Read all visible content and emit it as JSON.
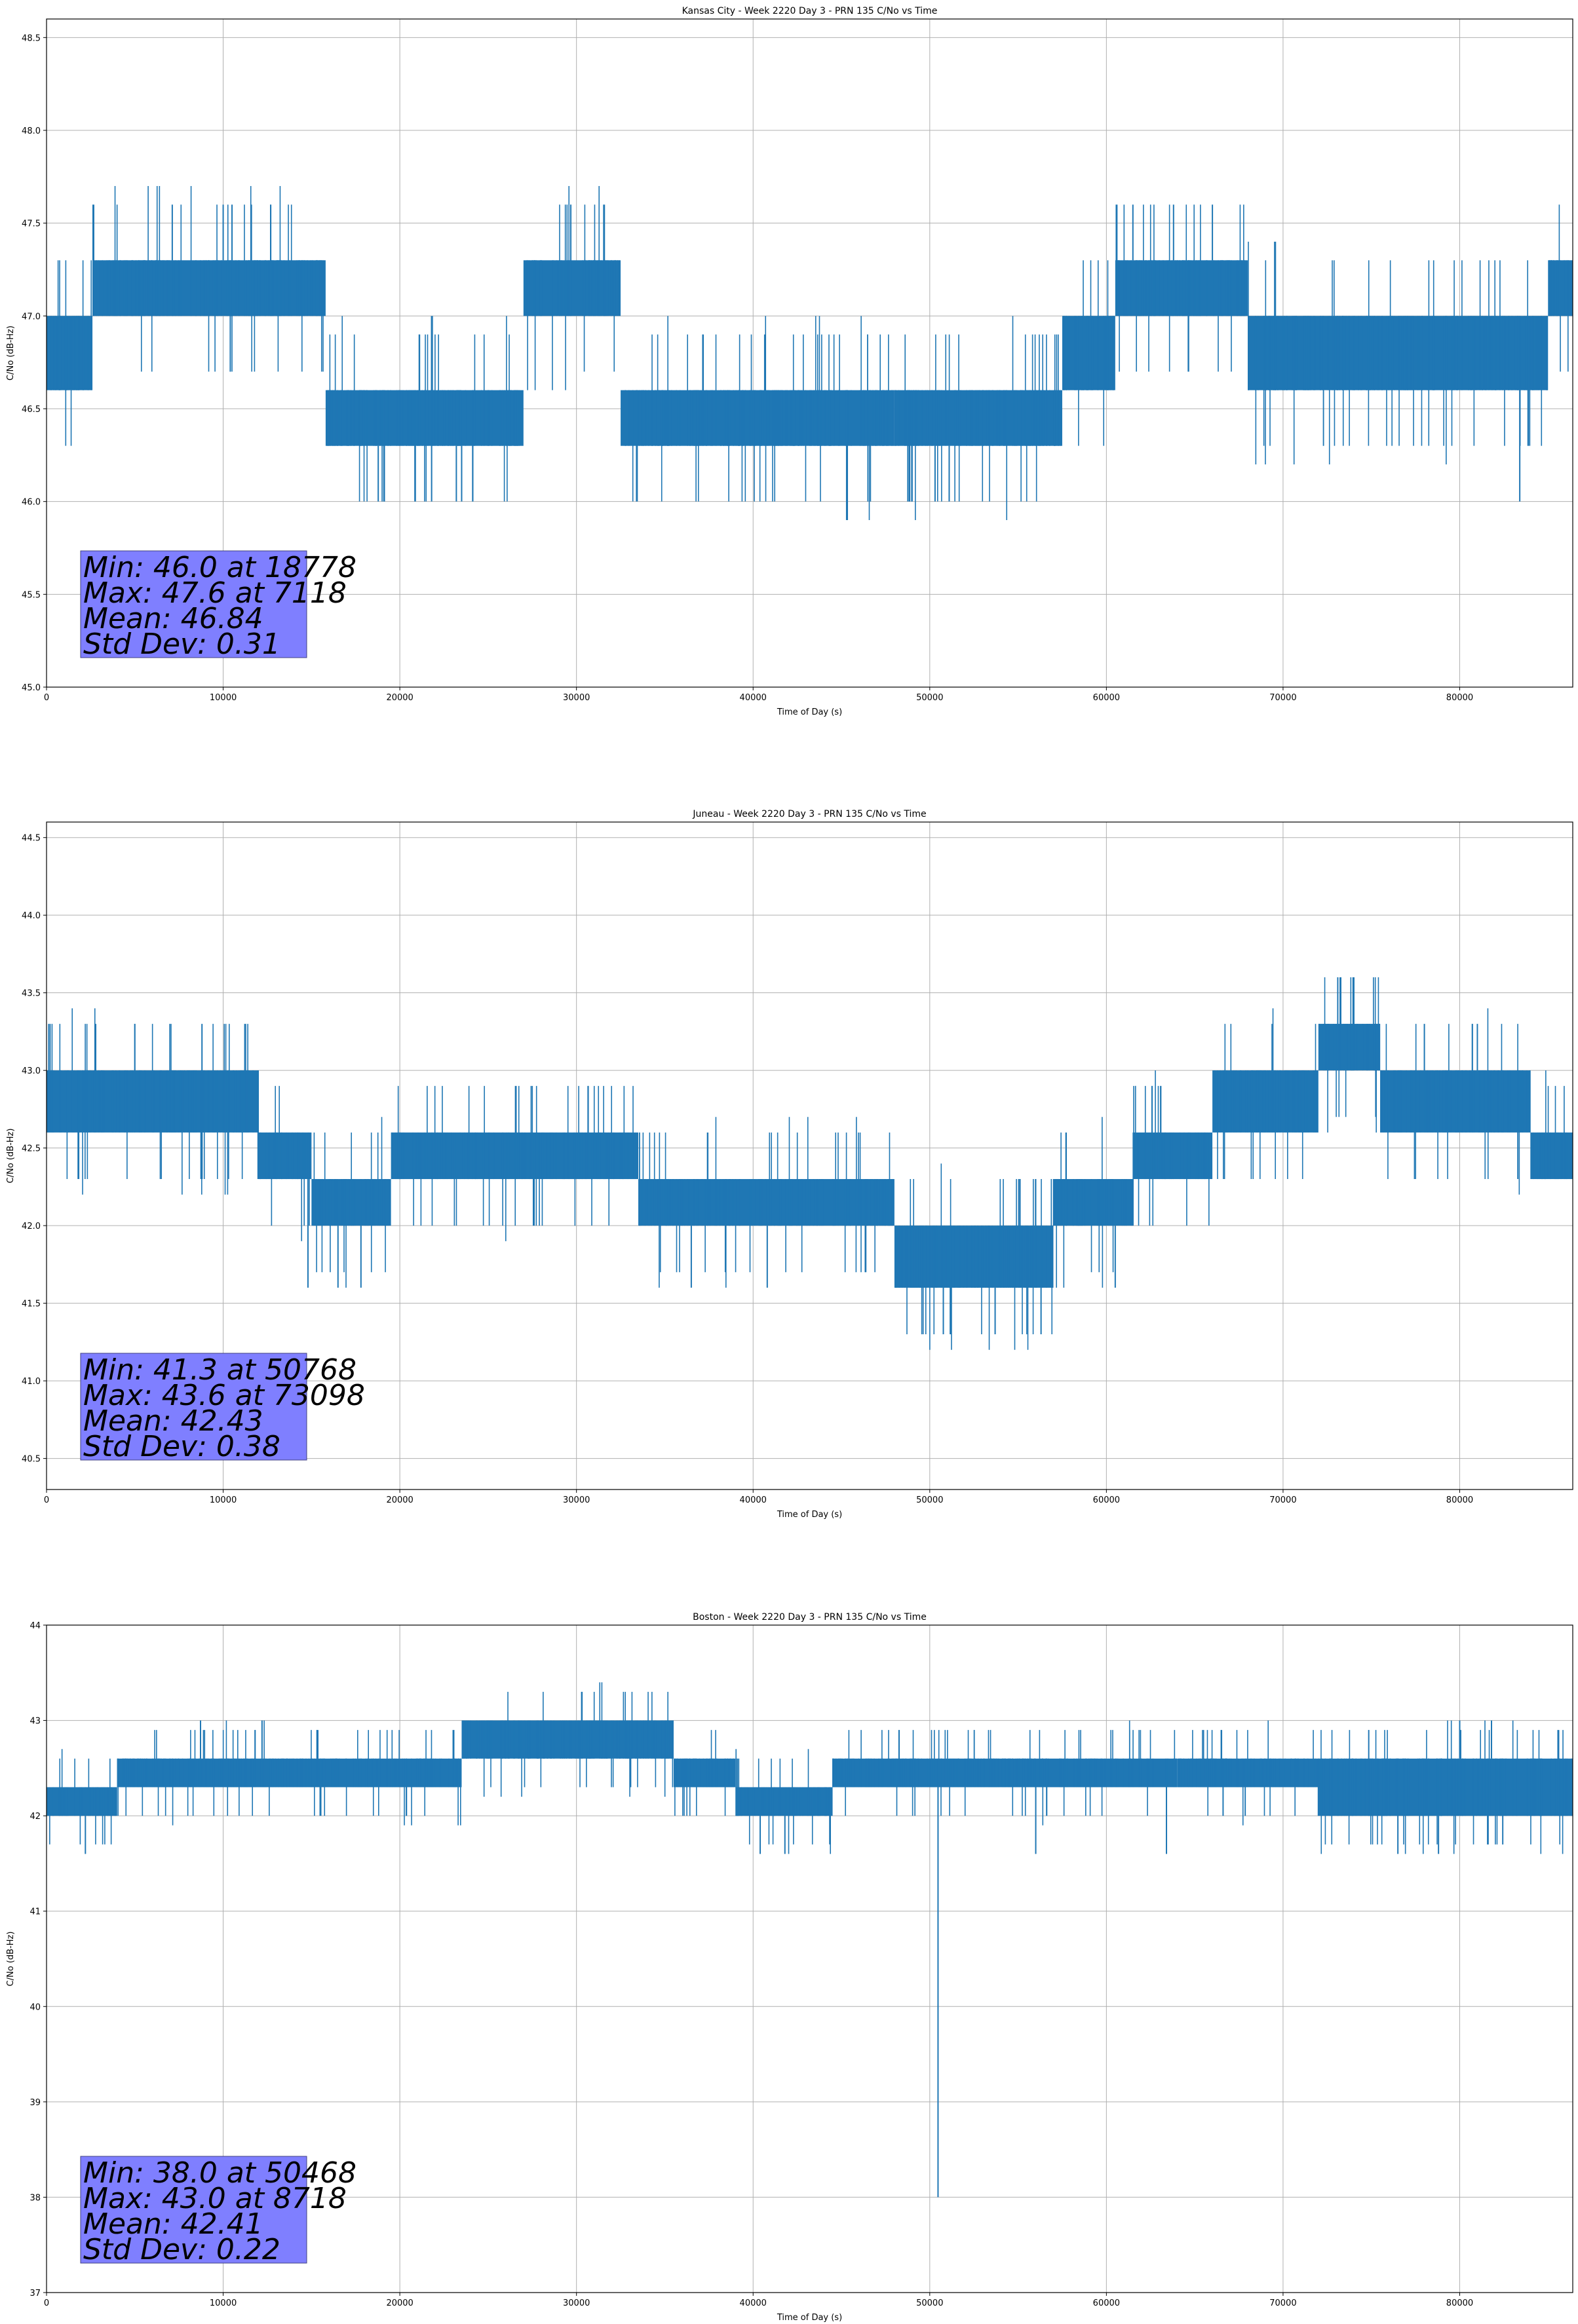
{
  "chart_data": [
    {
      "type": "line",
      "title": "Kansas City - Week 2220 Day 3 - PRN 135 C/No vs Time",
      "xlabel": "Time of Day (s)",
      "ylabel": "C/No (dB-Hz)",
      "xlim": [
        0,
        86400
      ],
      "ylim": [
        45.0,
        48.6
      ],
      "xticks": [
        0,
        10000,
        20000,
        30000,
        40000,
        50000,
        60000,
        70000,
        80000
      ],
      "yticks": [
        "45.0",
        "45.5",
        "46.0",
        "46.5",
        "47.0",
        "47.5",
        "48.0",
        "48.5"
      ],
      "grid": true,
      "color": "#1f77b4",
      "stats": [
        "Min: 46.0 at 18778",
        "Max: 47.6 at 7118",
        "Mean: 46.84",
        "Std Dev: 0.31"
      ],
      "bands": [
        {
          "x": [
            0,
            2600
          ],
          "y": [
            46.6,
            47.0
          ]
        },
        {
          "x": [
            2600,
            15800
          ],
          "y": [
            47.0,
            47.3
          ]
        },
        {
          "x": [
            15800,
            27000
          ],
          "y": [
            46.3,
            46.6
          ]
        },
        {
          "x": [
            27000,
            32500
          ],
          "y": [
            47.0,
            47.3
          ]
        },
        {
          "x": [
            32500,
            48000
          ],
          "y": [
            46.3,
            46.6
          ]
        },
        {
          "x": [
            48000,
            57500
          ],
          "y": [
            46.3,
            46.6
          ]
        },
        {
          "x": [
            57500,
            60500
          ],
          "y": [
            46.6,
            47.0
          ]
        },
        {
          "x": [
            60500,
            68000
          ],
          "y": [
            47.0,
            47.3
          ]
        },
        {
          "x": [
            68000,
            85000
          ],
          "y": [
            46.6,
            47.0
          ]
        },
        {
          "x": [
            85000,
            86400
          ],
          "y": [
            47.0,
            47.3
          ]
        }
      ],
      "spikes": [
        [
          7118,
          47.6
        ],
        [
          10000,
          47.6
        ],
        [
          10500,
          47.6
        ],
        [
          18778,
          46.0
        ],
        [
          21800,
          46.0
        ],
        [
          23200,
          46.0
        ],
        [
          23500,
          46.0
        ],
        [
          49000,
          46.0
        ],
        [
          50300,
          46.0
        ],
        [
          51100,
          46.0
        ],
        [
          61500,
          47.6
        ],
        [
          63800,
          47.6
        ],
        [
          66000,
          47.6
        ],
        [
          83400,
          46.0
        ]
      ]
    },
    {
      "type": "line",
      "title": "Juneau - Week 2220 Day 3 - PRN 135 C/No vs Time",
      "xlabel": "Time of Day (s)",
      "ylabel": "C/No (dB-Hz)",
      "xlim": [
        0,
        86400
      ],
      "ylim": [
        40.3,
        44.6
      ],
      "xticks": [
        0,
        10000,
        20000,
        30000,
        40000,
        50000,
        60000,
        70000,
        80000
      ],
      "yticks": [
        "40.5",
        "41.0",
        "41.5",
        "42.0",
        "42.5",
        "43.0",
        "43.5",
        "44.0",
        "44.5"
      ],
      "grid": true,
      "color": "#1f77b4",
      "stats": [
        "Min: 41.3 at 50768",
        "Max: 43.6 at 73098",
        "Mean: 42.43",
        "Std Dev: 0.38"
      ],
      "bands": [
        {
          "x": [
            0,
            12000
          ],
          "y": [
            42.6,
            43.0
          ]
        },
        {
          "x": [
            12000,
            15000
          ],
          "y": [
            42.3,
            42.6
          ]
        },
        {
          "x": [
            15000,
            19500
          ],
          "y": [
            42.0,
            42.3
          ]
        },
        {
          "x": [
            19500,
            33500
          ],
          "y": [
            42.3,
            42.6
          ]
        },
        {
          "x": [
            33500,
            48000
          ],
          "y": [
            42.0,
            42.3
          ]
        },
        {
          "x": [
            48000,
            57000
          ],
          "y": [
            41.6,
            42.0
          ]
        },
        {
          "x": [
            57000,
            61500
          ],
          "y": [
            42.0,
            42.3
          ]
        },
        {
          "x": [
            61500,
            66000
          ],
          "y": [
            42.3,
            42.6
          ]
        },
        {
          "x": [
            66000,
            72000
          ],
          "y": [
            42.6,
            43.0
          ]
        },
        {
          "x": [
            72000,
            75500
          ],
          "y": [
            43.0,
            43.3
          ]
        },
        {
          "x": [
            75500,
            84000
          ],
          "y": [
            42.6,
            43.0
          ]
        },
        {
          "x": [
            84000,
            86400
          ],
          "y": [
            42.3,
            42.6
          ]
        }
      ],
      "spikes": [
        [
          200,
          43.3
        ],
        [
          5000,
          43.3
        ],
        [
          8800,
          43.3
        ],
        [
          14800,
          41.6
        ],
        [
          16500,
          41.6
        ],
        [
          17800,
          41.6
        ],
        [
          36500,
          41.6
        ],
        [
          40800,
          41.6
        ],
        [
          50768,
          41.3
        ],
        [
          51200,
          41.3
        ],
        [
          53700,
          41.3
        ],
        [
          56300,
          41.3
        ],
        [
          60500,
          41.6
        ],
        [
          73098,
          43.6
        ],
        [
          78000,
          43.3
        ],
        [
          81000,
          43.3
        ]
      ]
    },
    {
      "type": "line",
      "title": "Boston - Week 2220 Day 3 - PRN 135 C/No vs Time",
      "xlabel": "Time of Day (s)",
      "ylabel": "C/No (dB-Hz)",
      "xlim": [
        0,
        86400
      ],
      "ylim": [
        37,
        44
      ],
      "xticks": [
        0,
        10000,
        20000,
        30000,
        40000,
        50000,
        60000,
        70000,
        80000
      ],
      "yticks": [
        "37",
        "38",
        "39",
        "40",
        "41",
        "42",
        "43",
        "44"
      ],
      "grid": true,
      "color": "#1f77b4",
      "stats": [
        "Min: 38.0 at 50468",
        "Max: 43.0 at 8718",
        "Mean: 42.41",
        "Std Dev: 0.22"
      ],
      "bands": [
        {
          "x": [
            0,
            4000
          ],
          "y": [
            42.0,
            42.3
          ]
        },
        {
          "x": [
            4000,
            23500
          ],
          "y": [
            42.3,
            42.6
          ]
        },
        {
          "x": [
            23500,
            35500
          ],
          "y": [
            42.6,
            43.0
          ]
        },
        {
          "x": [
            35500,
            39000
          ],
          "y": [
            42.3,
            42.6
          ]
        },
        {
          "x": [
            39000,
            44500
          ],
          "y": [
            42.0,
            42.3
          ]
        },
        {
          "x": [
            44500,
            64000
          ],
          "y": [
            42.3,
            42.6
          ]
        },
        {
          "x": [
            64000,
            72000
          ],
          "y": [
            42.3,
            42.6
          ]
        },
        {
          "x": [
            72000,
            86400
          ],
          "y": [
            42.0,
            42.6
          ]
        }
      ],
      "spikes": [
        [
          2200,
          41.6
        ],
        [
          8718,
          43.0
        ],
        [
          12200,
          43.0
        ],
        [
          40400,
          41.6
        ],
        [
          41800,
          41.6
        ],
        [
          50468,
          38.0
        ],
        [
          56000,
          41.6
        ],
        [
          63400,
          41.6
        ],
        [
          76500,
          41.6
        ],
        [
          78800,
          41.6
        ],
        [
          80000,
          43.0
        ],
        [
          81800,
          43.0
        ]
      ]
    }
  ]
}
